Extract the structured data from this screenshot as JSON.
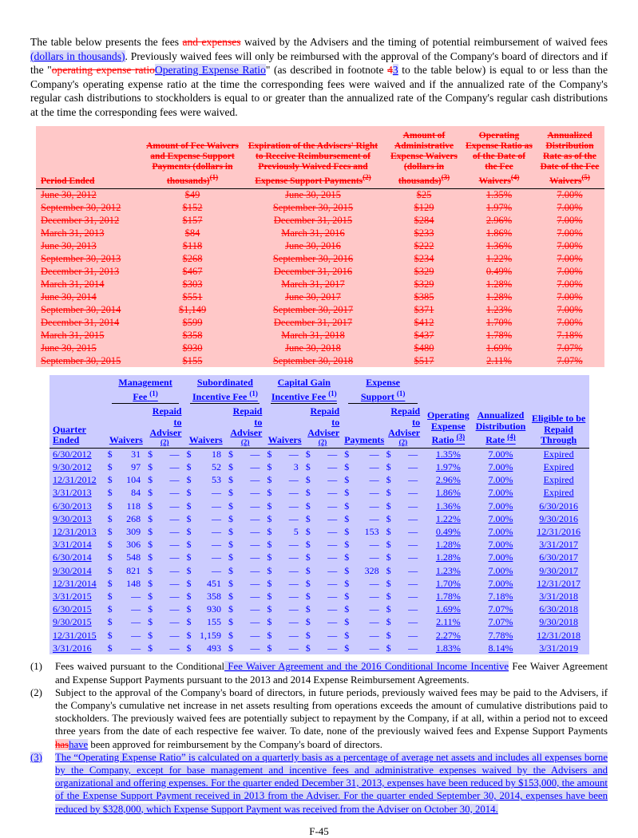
{
  "page": {
    "number": "F-45"
  },
  "intro": {
    "segments": [
      {
        "t": "The table below presents the fees ",
        "s": "n"
      },
      {
        "t": "and expenses",
        "s": "d"
      },
      {
        "t": " waived by the Advisers and the timing of potential reimbursement of waived fees ",
        "s": "n"
      },
      {
        "t": "(dollars in thousands)",
        "s": "i"
      },
      {
        "t": ". Previously waived fees will only be reimbursed with the approval of the Company's board of directors and if the \"",
        "s": "n"
      },
      {
        "t": "operating expense ratio",
        "s": "d"
      },
      {
        "t": "Operating Expense Ratio",
        "s": "i"
      },
      {
        "t": "\" (as described in footnote ",
        "s": "n"
      },
      {
        "t": "4",
        "s": "d"
      },
      {
        "t": "3",
        "s": "i"
      },
      {
        "t": " to the table below) is equal to or less than the Company's operating expense ratio at the time the corresponding fees were waived and if the annualized rate of the Company's regular cash distributions to stockholders is equal to or greater than the annualized rate of the Company's regular cash distributions at the time the corresponding fees were waived.",
        "s": "n"
      }
    ]
  },
  "deleted_table": {
    "headers": [
      {
        "text": "Period Ended",
        "sup": ""
      },
      {
        "text": "Amount of Fee Waivers and Expense Support Payments (dollars in thousands)",
        "sup": "(1)"
      },
      {
        "text": "Expiration of the Advisers' Right to Receive Reimbursement of Previously Waived Fees and Expense Support Payments",
        "sup": "(2)"
      },
      {
        "text": "Amount of Administrative Expense Waivers (dollars in thousands)",
        "sup": "(3)"
      },
      {
        "text": "Operating Expense Ratio as of the Date of the Fee Waivers",
        "sup": "(4)"
      },
      {
        "text": "Annualized Distribution Rate as of the Date of the Fee Waivers",
        "sup": "(5)"
      }
    ],
    "rows": [
      [
        "June 30, 2012",
        "$49",
        "June 30, 2015",
        "$25",
        "1.35%",
        "7.00%"
      ],
      [
        "September 30, 2012",
        "$152",
        "September 30, 2015",
        "$129",
        "1.97%",
        "7.00%"
      ],
      [
        "December 31, 2012",
        "$157",
        "December 31, 2015",
        "$284",
        "2.96%",
        "7.00%"
      ],
      [
        "March 31, 2013",
        "$84",
        "March 31, 2016",
        "$233",
        "1.86%",
        "7.00%"
      ],
      [
        "June 30, 2013",
        "$118",
        "June 30, 2016",
        "$222",
        "1.36%",
        "7.00%"
      ],
      [
        "September 30, 2013",
        "$268",
        "September 30, 2016",
        "$234",
        "1.22%",
        "7.00%"
      ],
      [
        "December 31, 2013",
        "$467",
        "December 31, 2016",
        "$329",
        "0.49%",
        "7.00%"
      ],
      [
        "March 31, 2014",
        "$303",
        "March 31, 2017",
        "$329",
        "1.28%",
        "7.00%"
      ],
      [
        "June 30, 2014",
        "$551",
        "June 30, 2017",
        "$385",
        "1.28%",
        "7.00%"
      ],
      [
        "September 30, 2014",
        "$1,149",
        "September 30, 2017",
        "$371",
        "1.23%",
        "7.00%"
      ],
      [
        "December 31, 2014",
        "$599",
        "December 31, 2017",
        "$412",
        "1.70%",
        "7.00%"
      ],
      [
        "March 31, 2015",
        "$358",
        "March 31, 2018",
        "$437",
        "1.78%",
        "7.18%"
      ],
      [
        "June 30, 2015",
        "$930",
        "June 30, 2018",
        "$480",
        "1.69%",
        "7.07%"
      ],
      [
        "September 30, 2015",
        "$155",
        "September 30, 2018",
        "$517",
        "2.11%",
        "7.07%"
      ]
    ]
  },
  "inserted_table": {
    "quarter_header": "Quarter Ended",
    "groups": [
      {
        "label": "Management Fee",
        "sup": "(1)"
      },
      {
        "label": "Subordinated Incentive Fee",
        "sup": "(1)"
      },
      {
        "label": "Capital Gain Incentive Fee",
        "sup": "(1)"
      },
      {
        "label": "Expense Support",
        "sup": "(1)"
      }
    ],
    "sub_headers": {
      "waivers": "Waivers",
      "payments": "Payments",
      "repaid": "Repaid to Adviser",
      "repaid_sup": "(2)"
    },
    "oer_header": {
      "label": "Operating Expense Ratio",
      "sup": "(3)"
    },
    "adr_header": {
      "label": "Annualized Distribution Rate",
      "sup": "(4)"
    },
    "eligible_header": "Eligible to be Repaid Through",
    "rows": [
      [
        "6/30/2012",
        "31",
        "—",
        "18",
        "—",
        "—",
        "—",
        "—",
        "—",
        "1.35%",
        "7.00%",
        "Expired"
      ],
      [
        "9/30/2012",
        "97",
        "—",
        "52",
        "—",
        "3",
        "—",
        "—",
        "—",
        "1.97%",
        "7.00%",
        "Expired"
      ],
      [
        "12/31/2012",
        "104",
        "—",
        "53",
        "—",
        "—",
        "—",
        "—",
        "—",
        "2.96%",
        "7.00%",
        "Expired"
      ],
      [
        "3/31/2013",
        "84",
        "—",
        "—",
        "—",
        "—",
        "—",
        "—",
        "—",
        "1.86%",
        "7.00%",
        "Expired"
      ],
      [
        "6/30/2013",
        "118",
        "—",
        "—",
        "—",
        "—",
        "—",
        "—",
        "—",
        "1.36%",
        "7.00%",
        "6/30/2016"
      ],
      [
        "9/30/2013",
        "268",
        "—",
        "—",
        "—",
        "—",
        "—",
        "—",
        "—",
        "1.22%",
        "7.00%",
        "9/30/2016"
      ],
      [
        "12/31/2013",
        "309",
        "—",
        "—",
        "—",
        "5",
        "—",
        "153",
        "—",
        "0.49%",
        "7.00%",
        "12/31/2016"
      ],
      [
        "3/31/2014",
        "306",
        "—",
        "—",
        "—",
        "—",
        "—",
        "—",
        "—",
        "1.28%",
        "7.00%",
        "3/31/2017"
      ],
      [
        "6/30/2014",
        "548",
        "—",
        "—",
        "—",
        "—",
        "—",
        "—",
        "—",
        "1.28%",
        "7.00%",
        "6/30/2017"
      ],
      [
        "9/30/2014",
        "821",
        "—",
        "—",
        "—",
        "—",
        "—",
        "328",
        "—",
        "1.23%",
        "7.00%",
        "9/30/2017"
      ],
      [
        "12/31/2014",
        "148",
        "—",
        "451",
        "—",
        "—",
        "—",
        "—",
        "—",
        "1.70%",
        "7.00%",
        "12/31/2017"
      ],
      [
        "3/31/2015",
        "—",
        "—",
        "358",
        "—",
        "—",
        "—",
        "—",
        "—",
        "1.78%",
        "7.18%",
        "3/31/2018"
      ],
      [
        "6/30/2015",
        "—",
        "—",
        "930",
        "—",
        "—",
        "—",
        "—",
        "—",
        "1.69%",
        "7.07%",
        "6/30/2018"
      ],
      [
        "9/30/2015",
        "—",
        "—",
        "155",
        "—",
        "—",
        "—",
        "—",
        "—",
        "2.11%",
        "7.07%",
        "9/30/2018"
      ],
      [
        "12/31/2015",
        "—",
        "—",
        "1,159",
        "—",
        "—",
        "—",
        "—",
        "—",
        "2.27%",
        "7.78%",
        "12/31/2018"
      ],
      [
        "3/31/2016",
        "—",
        "—",
        "493",
        "—",
        "—",
        "—",
        "—",
        "—",
        "1.83%",
        "8.14%",
        "3/31/2019"
      ]
    ]
  },
  "footnotes": [
    {
      "num": [
        {
          "t": "(1)",
          "s": "n"
        }
      ],
      "body": [
        {
          "t": "Fees waived pursuant to the Conditional",
          "s": "n"
        },
        {
          "t": " Fee Waiver Agreement and the 2016 Conditional Income Incentive",
          "s": "i"
        },
        {
          "t": " Fee Waiver Agreement and Expense Support Payments pursuant to the 2013 and 2014 Expense Reimbursement Agreements.",
          "s": "n"
        }
      ]
    },
    {
      "num": [
        {
          "t": "(2)",
          "s": "n"
        }
      ],
      "body": [
        {
          "t": "Subject to the approval of the Company's board of directors, in future periods, previously waived fees may be paid to the Advisers, if the Company's cumulative net increase in net assets resulting from operations exceeds the amount of cumulative distributions paid to stockholders. The previously waived fees are potentially subject to repayment by the Company, if at all, within a period not to exceed three years from the date of each respective fee waiver. To date, none of the previously waived fees and Expense Support Payments ",
          "s": "n"
        },
        {
          "t": "has",
          "s": "dh"
        },
        {
          "t": "have",
          "s": "i"
        },
        {
          "t": " been approved for reimbursement by the Company's board of directors.",
          "s": "n"
        }
      ]
    },
    {
      "num": [
        {
          "t": "(3)",
          "s": "i"
        }
      ],
      "body": [
        {
          "t": "The “Operating Expense Ratio” is calculated on a quarterly basis as a percentage of average net assets and includes all expenses borne by the Company, except for base management and incentive fees and administrative expenses waived by the Advisers and organizational and offering expenses. For the quarter ended December 31, 2013, expenses have been reduced by $153,000, the amount of the Expense Support Payment received in 2013 from the Adviser. For the quarter ended September 30, 2014, expenses have been reduced by $328,000, which Expense Support Payment was received from the Adviser on October 30, 2014.",
          "s": "i"
        }
      ]
    }
  ]
}
